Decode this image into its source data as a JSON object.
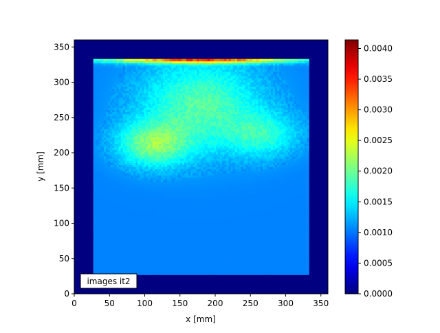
{
  "chart_data": {
    "type": "heatmap",
    "xlabel": "x [mm]",
    "ylabel": "y [mm]",
    "xlim": [
      0,
      360
    ],
    "ylim": [
      0,
      360
    ],
    "xticks": [
      0,
      50,
      100,
      150,
      200,
      250,
      300,
      350
    ],
    "yticks": [
      0,
      50,
      100,
      150,
      200,
      250,
      300,
      350
    ],
    "annotation": "images it2",
    "colormap": "jet",
    "colorbar": {
      "min": 0.0,
      "max": 0.00414,
      "ticks": [
        "0.0000",
        "0.0005",
        "0.0010",
        "0.0015",
        "0.0020",
        "0.0025",
        "0.0030",
        "0.0035",
        "0.0040"
      ]
    },
    "grid": false,
    "background_value": 0.0,
    "phantom_region": {
      "x": [
        27,
        333
      ],
      "y": [
        27,
        333
      ]
    },
    "phantom_baseline_value": 0.00105,
    "features": [
      {
        "name": "left-lobe",
        "center": [
          112,
          212
        ],
        "sigma": [
          35,
          22
        ],
        "peak": 0.00095
      },
      {
        "name": "right-lobe",
        "center": [
          268,
          225
        ],
        "sigma": [
          35,
          22
        ],
        "peak": 0.0006
      },
      {
        "name": "central-plume",
        "center": [
          180,
          268
        ],
        "sigma": [
          60,
          45
        ],
        "peak": 0.00085
      },
      {
        "name": "top-rim",
        "center": [
          180,
          333
        ],
        "sigma": [
          100,
          4
        ],
        "peak": 0.0022
      }
    ]
  },
  "colors": {
    "background": "#ffffff",
    "axis": "#000000"
  }
}
